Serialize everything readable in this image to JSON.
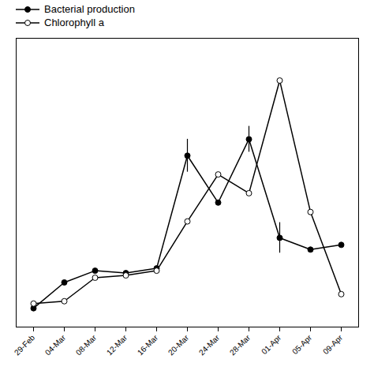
{
  "chart_data": {
    "type": "line",
    "categories": [
      "29-Feb",
      "04-Mar",
      "08-Mar",
      "12-Mar",
      "16-Mar",
      "20-Mar",
      "24-Mar",
      "28-Mar",
      "01-Apr",
      "05-Apr",
      "09-Apr"
    ],
    "series": [
      {
        "name": "Bacterial production",
        "color": "#000000",
        "marker": "circle",
        "values": [
          0.03,
          0.14,
          0.19,
          0.18,
          0.2,
          0.68,
          0.48,
          0.75,
          0.33,
          0.28,
          0.3
        ],
        "yerr": [
          0.0,
          0.0,
          0.0,
          0.0,
          0.0,
          0.07,
          0.0,
          0.055,
          0.065,
          0.0,
          0.0
        ]
      },
      {
        "name": "Chlorophyll a",
        "color": "#000000",
        "marker": "open_circle",
        "values": [
          0.05,
          0.06,
          0.16,
          0.17,
          0.19,
          0.4,
          0.6,
          0.52,
          1.0,
          0.44,
          0.09
        ]
      }
    ],
    "ylim": [
      -0.05,
      1.18
    ],
    "tick_labels": "x",
    "grid": false,
    "legend": "upper left"
  }
}
